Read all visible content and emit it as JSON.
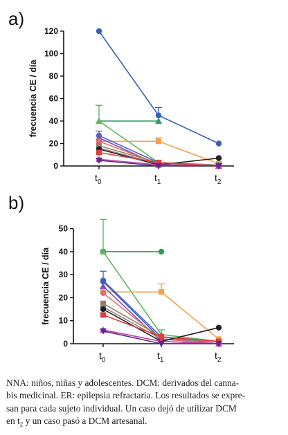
{
  "panels": [
    {
      "label": "a)",
      "chart_data": {
        "type": "line",
        "ylabel": "frecuencia CE / día",
        "x": [
          "t0",
          "t1",
          "t2"
        ],
        "ylim": [
          0,
          120
        ],
        "yticks": [
          0,
          20,
          40,
          60,
          80,
          100,
          120
        ],
        "series": [
          {
            "color": "#3b5fc0",
            "marker": "circle",
            "values": [
              120,
              45,
              20
            ],
            "err": [
              0,
              7,
              0
            ]
          },
          {
            "color": "#2e9a5c",
            "marker": "triangle",
            "values": [
              40,
              40,
              null
            ]
          },
          {
            "color": "#5cb85c",
            "marker": "triangle",
            "values": [
              40,
              3,
              0
            ],
            "err": [
              14,
              2,
              0
            ]
          },
          {
            "color": "#f5a04a",
            "marker": "square",
            "values": [
              22,
              22,
              2
            ],
            "err": [
              0,
              3,
              0
            ]
          },
          {
            "color": "#4f67c9",
            "marker": "circle",
            "values": [
              27,
              3,
              0
            ],
            "err": [
              4,
              0,
              0
            ]
          },
          {
            "color": "#7a4fc2",
            "marker": "triangle",
            "values": [
              25,
              1,
              0
            ]
          },
          {
            "color": "#e07070",
            "marker": "circle",
            "values": [
              22,
              2,
              0
            ]
          },
          {
            "color": "#a07a5a",
            "marker": "square",
            "values": [
              18,
              3,
              1
            ]
          },
          {
            "color": "#8a8a8a",
            "marker": "circle",
            "values": [
              16,
              2,
              1
            ]
          },
          {
            "color": "#222222",
            "marker": "circle",
            "values": [
              15,
              1,
              7
            ]
          },
          {
            "color": "#e23b3b",
            "marker": "square",
            "values": [
              12,
              3,
              0
            ]
          },
          {
            "color": "#c23fa0",
            "marker": "triangle",
            "values": [
              6,
              1,
              0
            ]
          },
          {
            "color": "#5a2a8a",
            "marker": "triangle-down",
            "values": [
              5,
              0,
              0
            ]
          }
        ]
      }
    },
    {
      "label": "b)",
      "chart_data": {
        "type": "line",
        "ylabel": "frecuencia CE / día",
        "x": [
          "t0",
          "t1",
          "t2"
        ],
        "ylim": [
          0,
          55
        ],
        "yticks": [
          0,
          10,
          20,
          30,
          40,
          50
        ],
        "series": [
          {
            "color": "#2e9a5c",
            "marker": "circle",
            "values": [
              40,
              40,
              null
            ]
          },
          {
            "color": "#5cb85c",
            "marker": "triangle",
            "values": [
              40,
              4,
              1
            ],
            "err": [
              14,
              2,
              0
            ]
          },
          {
            "color": "#f5a04a",
            "marker": "square",
            "values": [
              22.5,
              22.5,
              2
            ],
            "err": [
              0,
              3.5,
              0
            ]
          },
          {
            "color": "#4f67c9",
            "marker": "circle",
            "values": [
              27.5,
              3,
              0
            ],
            "err": [
              4,
              0,
              0
            ]
          },
          {
            "color": "#3b5fc0",
            "marker": "circle",
            "values": [
              27,
              2,
              1
            ]
          },
          {
            "color": "#7a4fc2",
            "marker": "triangle",
            "values": [
              25,
              1,
              0
            ]
          },
          {
            "color": "#e07070",
            "marker": "circle",
            "values": [
              22,
              2,
              0
            ]
          },
          {
            "color": "#a07a5a",
            "marker": "square",
            "values": [
              17.5,
              3,
              1
            ]
          },
          {
            "color": "#8a8a8a",
            "marker": "circle",
            "values": [
              16,
              2,
              1
            ]
          },
          {
            "color": "#222222",
            "marker": "circle",
            "values": [
              15,
              1,
              7
            ]
          },
          {
            "color": "#e23b3b",
            "marker": "square",
            "values": [
              12.5,
              3,
              1
            ]
          },
          {
            "color": "#c23fa0",
            "marker": "triangle",
            "values": [
              6,
              1,
              0
            ]
          },
          {
            "color": "#5a2a8a",
            "marker": "triangle-down",
            "values": [
              5.5,
              0,
              0
            ]
          }
        ]
      }
    }
  ],
  "caption": {
    "line1": "NNA: niños, niñas y adolescentes. DCM: derivados del canna-",
    "line2": "bis medicinal. ER: epilepsia refractaria. Los resultados se expre-",
    "line3": "san para cada sujeto individual. Un caso dejó de utilizar DCM",
    "line4a": "en t",
    "line4sub": "2",
    "line4b": " y un caso pasó a DCM artesanal."
  }
}
